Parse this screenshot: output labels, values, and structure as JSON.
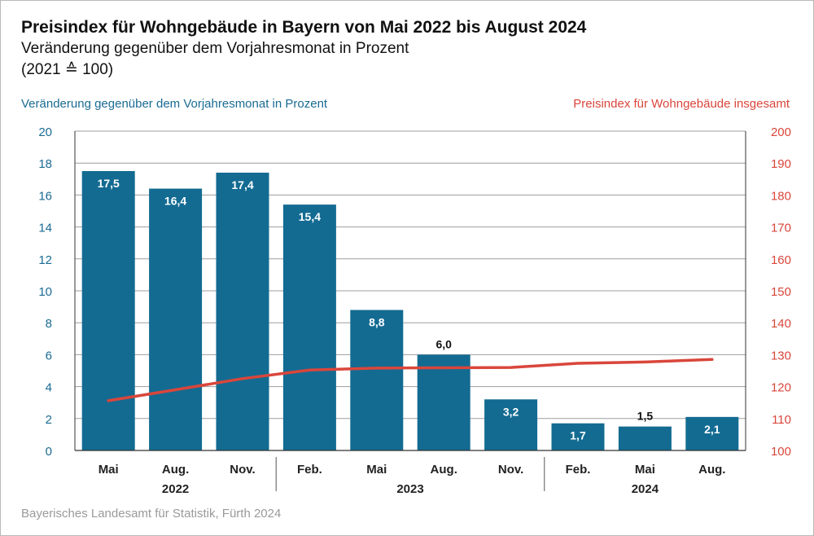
{
  "header": {
    "title": "Preisindex für Wohngebäude in Bayern von Mai 2022 bis August 2024",
    "subtitle": "Veränderung gegenüber dem Vorjahresmonat in Prozent",
    "subtitle2": "(2021 ≙ 100)"
  },
  "legend": {
    "left_axis_label": "Veränderung gegenüber dem Vorjahresmonat in Prozent",
    "right_axis_label": "Preisindex für Wohngebäude insgesamt"
  },
  "footer": {
    "source": "Bayerisches Landesamt für Statistik, Fürth 2024"
  },
  "colors": {
    "bar": "#136b92",
    "line": "#d9463b",
    "left_axis": "#1a6b93",
    "right_axis": "#d9463b",
    "grid": "#9e9e9e"
  },
  "chart_data": {
    "type": "bar",
    "categories": [
      "Mai",
      "Aug.",
      "Nov.",
      "Feb.",
      "Mai",
      "Aug.",
      "Nov.",
      "Feb.",
      "Mai",
      "Aug."
    ],
    "year_groups": [
      {
        "year": "2022",
        "start": 0,
        "end": 2
      },
      {
        "year": "2023",
        "start": 3,
        "end": 6
      },
      {
        "year": "2024",
        "start": 7,
        "end": 9
      }
    ],
    "series": [
      {
        "name": "Veränderung gegenüber dem Vorjahresmonat in Prozent",
        "type": "bar",
        "axis": "left",
        "values": [
          17.5,
          16.4,
          17.4,
          15.4,
          8.8,
          6.0,
          3.2,
          1.7,
          1.5,
          2.1
        ],
        "labels": [
          "17,5",
          "16,4",
          "17,4",
          "15,4",
          "8,8",
          "6,0",
          "3,2",
          "1,7",
          "1,5",
          "2,1"
        ]
      },
      {
        "name": "Preisindex für Wohngebäude insgesamt",
        "type": "line",
        "axis": "right",
        "values": [
          115.6,
          119.0,
          122.5,
          125.2,
          125.8,
          125.9,
          126.0,
          127.3,
          127.7,
          128.5
        ]
      }
    ],
    "ylim_left": [
      0,
      20
    ],
    "yticks_left": [
      0,
      2,
      4,
      6,
      8,
      10,
      12,
      14,
      16,
      18,
      20
    ],
    "ylim_right": [
      100,
      200
    ],
    "yticks_right": [
      100,
      110,
      120,
      130,
      140,
      150,
      160,
      170,
      180,
      190,
      200
    ],
    "grid": true
  }
}
